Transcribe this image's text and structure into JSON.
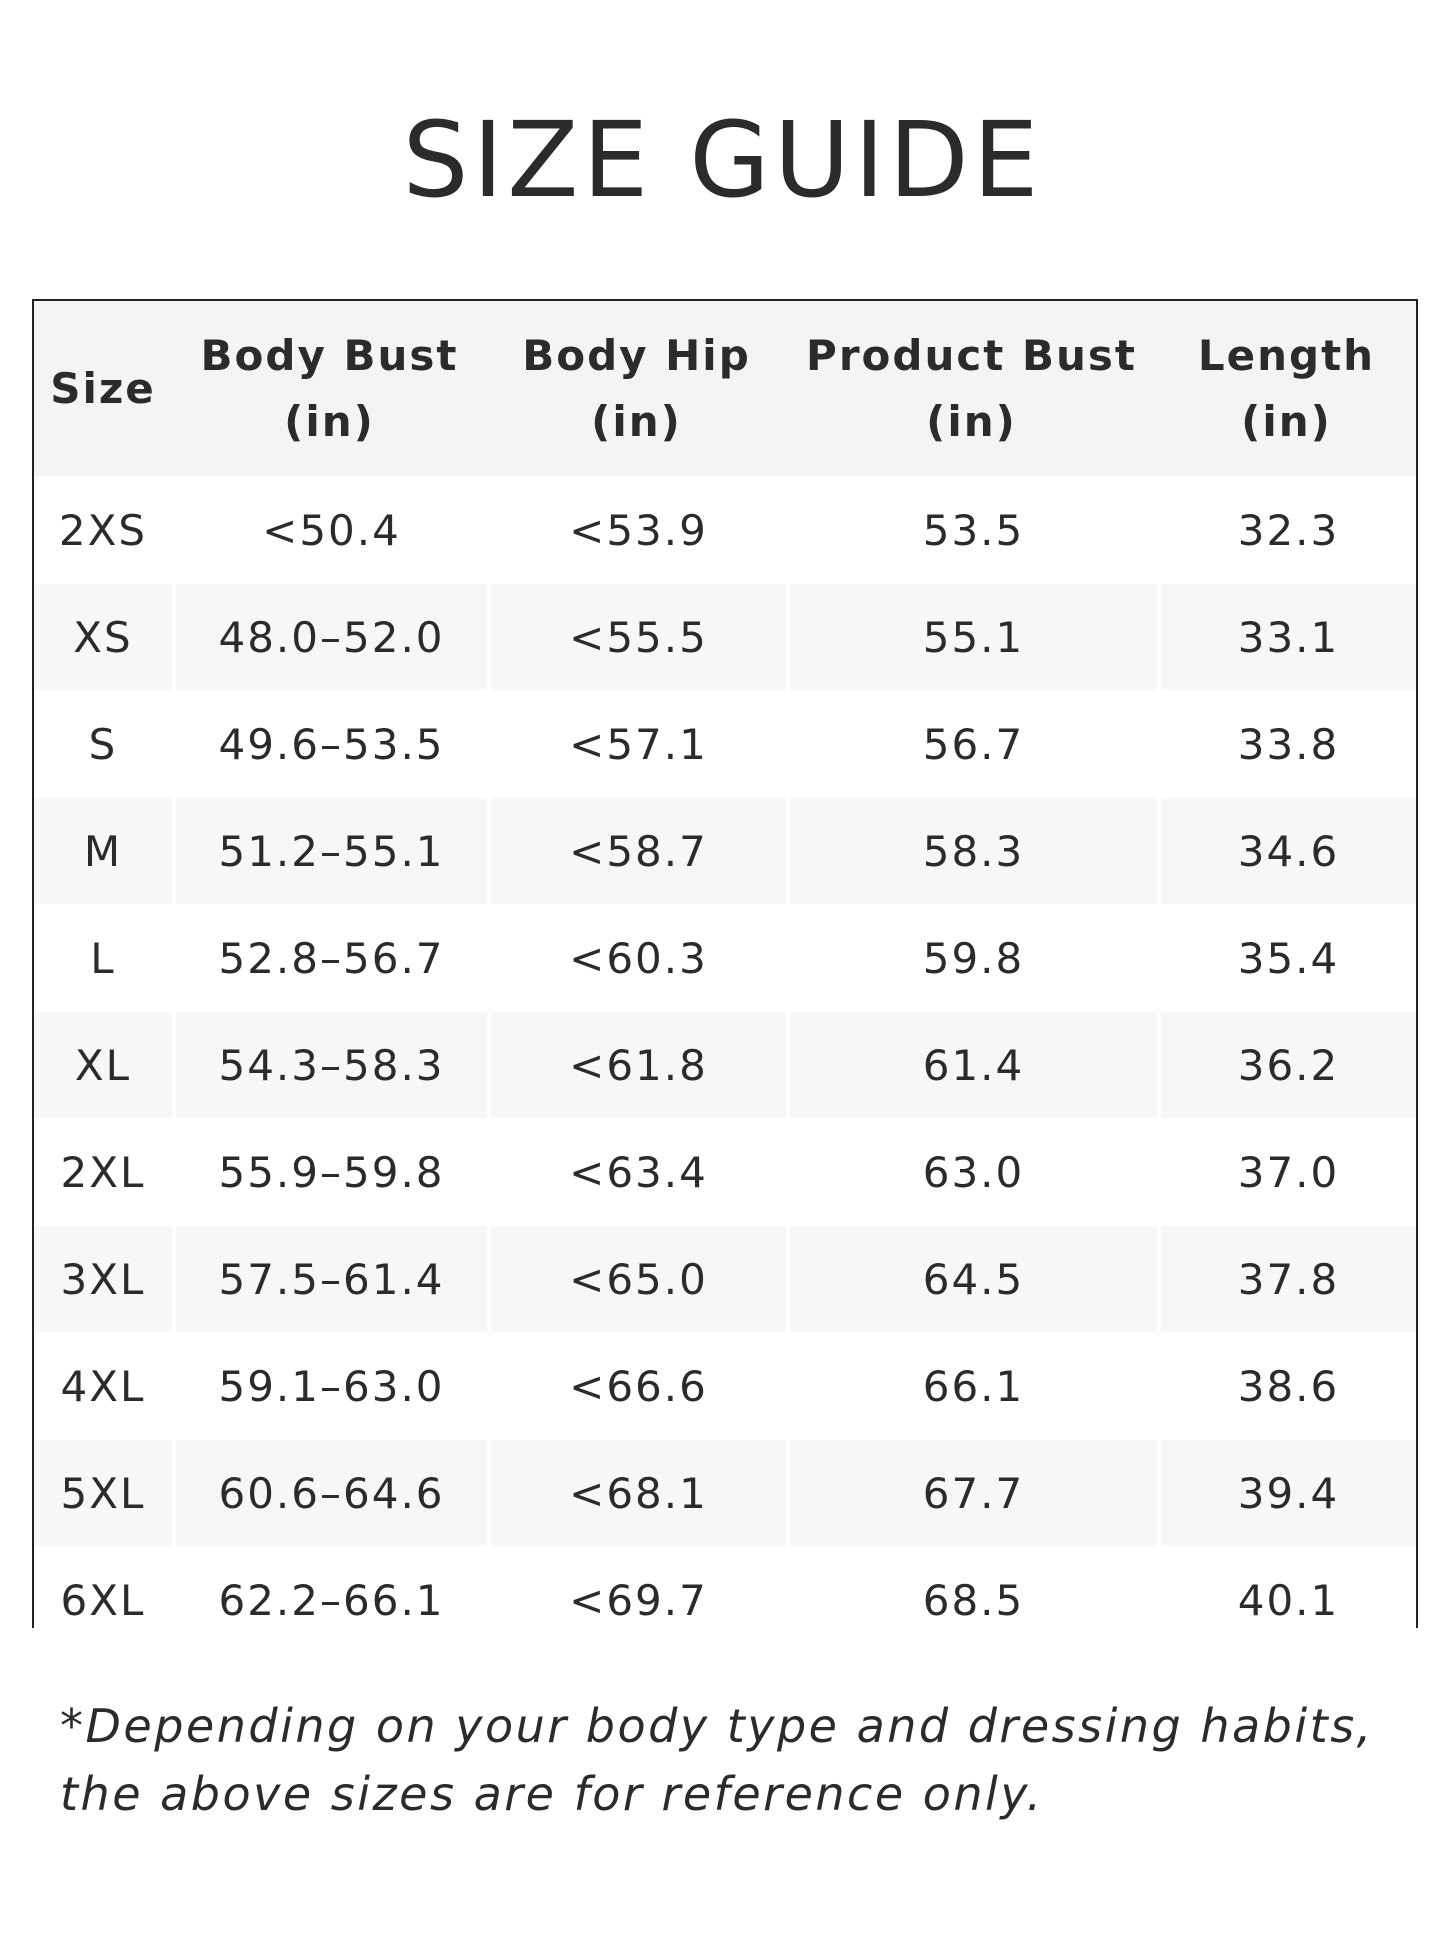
{
  "header": {
    "title": "SIZE GUIDE"
  },
  "table": {
    "columns": [
      "Size",
      "Body Bust\n(in)",
      "Body Hip\n(in)",
      "Product Bust\n(in)",
      "Length\n(in)"
    ],
    "rows": [
      [
        "2XS",
        "<50.4",
        "<53.9",
        "53.5",
        "32.3"
      ],
      [
        "XS",
        "48.0–52.0",
        "<55.5",
        "55.1",
        "33.1"
      ],
      [
        "S",
        "49.6–53.5",
        "<57.1",
        "56.7",
        "33.8"
      ],
      [
        "M",
        "51.2–55.1",
        "<58.7",
        "58.3",
        "34.6"
      ],
      [
        "L",
        "52.8–56.7",
        "<60.3",
        "59.8",
        "35.4"
      ],
      [
        "XL",
        "54.3–58.3",
        "<61.8",
        "61.4",
        "36.2"
      ],
      [
        "2XL",
        "55.9–59.8",
        "<63.4",
        "63.0",
        "37.0"
      ],
      [
        "3XL",
        "57.5–61.4",
        "<65.0",
        "64.5",
        "37.8"
      ],
      [
        "4XL",
        "59.1–63.0",
        "<66.6",
        "66.1",
        "38.6"
      ],
      [
        "5XL",
        "60.6–64.6",
        "<68.1",
        "67.7",
        "39.4"
      ],
      [
        "6XL",
        "62.2–66.1",
        "<69.7",
        "68.5",
        "40.1"
      ]
    ]
  },
  "footnote": "*Depending on your body type and dressing habits, the above sizes are for reference only."
}
